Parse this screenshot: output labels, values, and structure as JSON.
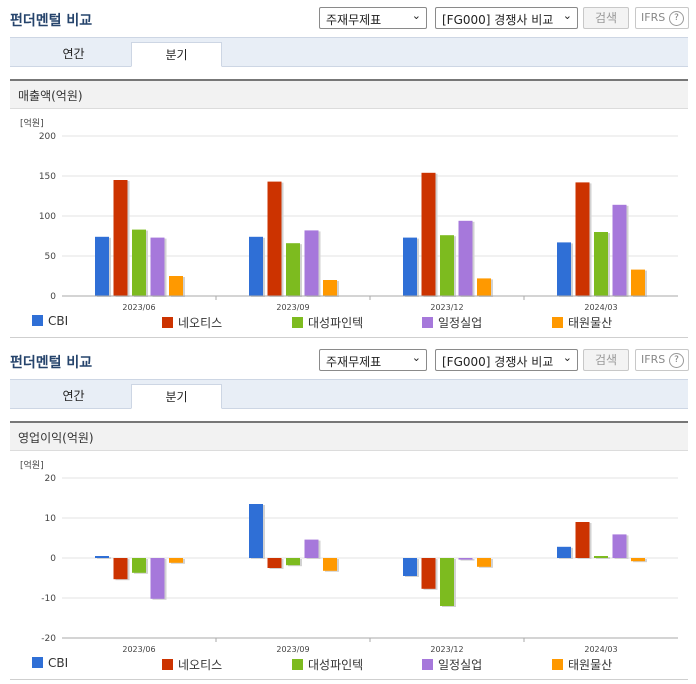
{
  "sections": [
    {
      "title": "펀더멘털 비교",
      "select1": "주재무제표",
      "select2": "[FG000] 경쟁사 비교",
      "search_label": "검색",
      "ifrs_label": "IFRS",
      "ifrs_help": "?",
      "tabs": [
        "연간",
        "분기"
      ],
      "active_tab": 1,
      "subtitle": "매출액(억원)",
      "chart_data": {
        "type": "bar",
        "title": "매출액(억원)",
        "unit_label": "[억원]",
        "categories": [
          "2023/06",
          "2023/09",
          "2023/12",
          "2024/03"
        ],
        "ylim": [
          0,
          200
        ],
        "yticks": [
          0,
          50,
          100,
          150,
          200
        ],
        "grid": true,
        "legend_position": "bottom",
        "series": [
          {
            "name": "CBI",
            "color": "#2f6fd6",
            "values": [
              74,
              74,
              73,
              67
            ]
          },
          {
            "name": "네오티스",
            "color": "#cc3300",
            "values": [
              145,
              143,
              154,
              142
            ]
          },
          {
            "name": "대성파인텍",
            "color": "#7dbb1f",
            "values": [
              83,
              66,
              76,
              80
            ]
          },
          {
            "name": "일정실업",
            "color": "#a678db",
            "values": [
              73,
              82,
              94,
              114
            ]
          },
          {
            "name": "태원물산",
            "color": "#ff9900",
            "values": [
              25,
              20,
              22,
              33
            ]
          }
        ]
      }
    },
    {
      "title": "펀더멘털 비교",
      "select1": "주재무제표",
      "select2": "[FG000] 경쟁사 비교",
      "search_label": "검색",
      "ifrs_label": "IFRS",
      "ifrs_help": "?",
      "tabs": [
        "연간",
        "분기"
      ],
      "active_tab": 1,
      "subtitle": "영업이익(억원)",
      "chart_data": {
        "type": "bar",
        "title": "영업이익(억원)",
        "unit_label": "[억원]",
        "categories": [
          "2023/06",
          "2023/09",
          "2023/12",
          "2024/03"
        ],
        "ylim": [
          -20,
          20
        ],
        "yticks": [
          -20,
          -10,
          0,
          10,
          20
        ],
        "grid": true,
        "legend_position": "bottom",
        "series": [
          {
            "name": "CBI",
            "color": "#2f6fd6",
            "values": [
              0.5,
              13.5,
              -4.5,
              2.8
            ]
          },
          {
            "name": "네오티스",
            "color": "#cc3300",
            "values": [
              -5.3,
              -2.5,
              -7.7,
              9.0
            ]
          },
          {
            "name": "대성파인텍",
            "color": "#7dbb1f",
            "values": [
              -3.7,
              -1.8,
              -12.0,
              0.5
            ]
          },
          {
            "name": "일정실업",
            "color": "#a678db",
            "values": [
              -10.2,
              4.6,
              -0.4,
              5.9
            ]
          },
          {
            "name": "태원물산",
            "color": "#ff9900",
            "values": [
              -1.2,
              -3.2,
              -2.2,
              -0.8
            ]
          }
        ]
      }
    }
  ]
}
